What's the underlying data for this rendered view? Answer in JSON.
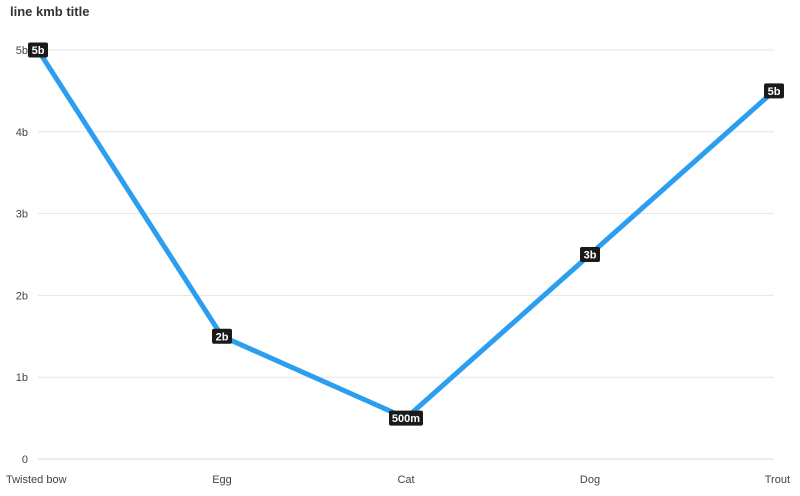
{
  "chart_data": {
    "type": "line",
    "title": "line kmb title",
    "categories": [
      "Twisted bow",
      "Egg",
      "Cat",
      "Dog",
      "Trout"
    ],
    "series": [
      {
        "values": [
          5000000000,
          1500000000,
          500000000,
          2500000000,
          4500000000
        ],
        "data_labels": [
          "5b",
          "2b",
          "500m",
          "3b",
          "5b"
        ],
        "color": "#2b9ef0"
      }
    ],
    "y_ticks": [
      0,
      1000000000,
      2000000000,
      3000000000,
      4000000000,
      5000000000
    ],
    "y_tick_labels": [
      "0",
      "1b",
      "2b",
      "3b",
      "4b",
      "5b"
    ],
    "ylim": [
      0,
      5000000000
    ],
    "grid": true,
    "legend": "none"
  }
}
